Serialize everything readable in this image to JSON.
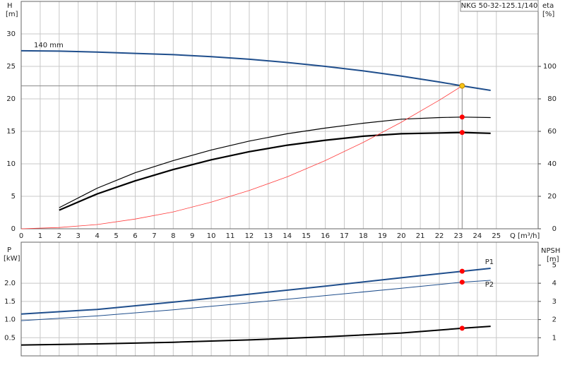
{
  "chart_data": [
    {
      "type": "line",
      "title": "NKG 50-32-125.1/140",
      "y_label": "H",
      "y_unit": "[m]",
      "y2_label": "eta",
      "y2_unit": "[%]",
      "x_label": "Q [m³/h]",
      "xlim": [
        0,
        27.2
      ],
      "xticks": [
        0,
        1,
        2,
        3,
        4,
        5,
        6,
        7,
        8,
        9,
        10,
        11,
        12,
        13,
        14,
        15,
        16,
        17,
        18,
        19,
        20,
        21,
        22,
        23,
        24,
        25
      ],
      "ylim": [
        0,
        35
      ],
      "yticks": [
        0,
        5,
        10,
        15,
        20,
        25,
        30
      ],
      "y2lim": [
        0,
        140
      ],
      "y2ticks": [
        0,
        20,
        40,
        60,
        80,
        100
      ],
      "grid": true,
      "series": [
        {
          "name": "140 mm",
          "color": "#1f4e8c",
          "width": 2,
          "x": [
            0,
            2,
            4,
            6,
            8,
            10,
            12,
            14,
            16,
            18,
            20,
            22,
            23.2,
            24.7
          ],
          "values": [
            27.4,
            27.35,
            27.2,
            27.0,
            26.8,
            26.5,
            26.1,
            25.6,
            25.0,
            24.3,
            23.5,
            22.6,
            22.0,
            21.3
          ]
        },
        {
          "color": "#000000",
          "width": 1.2,
          "axis": "y2",
          "x": [
            2,
            4,
            6,
            8,
            10,
            12,
            14,
            16,
            18,
            20,
            22,
            23.2,
            24.7
          ],
          "values": [
            13,
            25,
            34.5,
            42,
            48.5,
            54,
            58.5,
            62,
            65,
            67.5,
            68.5,
            68.8,
            68.5
          ]
        },
        {
          "color": "#000000",
          "width": 2.2,
          "axis": "y2",
          "x": [
            2,
            4,
            6,
            8,
            10,
            12,
            14,
            16,
            18,
            20,
            22,
            23.2,
            24.7
          ],
          "values": [
            11.5,
            21.5,
            29.5,
            36.5,
            42.5,
            47.5,
            51.5,
            54.5,
            57,
            58.5,
            59,
            59.3,
            58.8
          ]
        },
        {
          "color": "#ff3b3b",
          "width": 0.8,
          "x": [
            0,
            2,
            4,
            6,
            8,
            10,
            12,
            14,
            16,
            18,
            20,
            22,
            23.2
          ],
          "values": [
            0,
            0.2,
            0.65,
            1.5,
            2.6,
            4.1,
            5.9,
            8.0,
            10.5,
            13.3,
            16.4,
            19.8,
            22
          ]
        }
      ],
      "points": [
        {
          "x": 23.2,
          "y": 22,
          "color": "#f5c518",
          "guide": true
        },
        {
          "x": 23.2,
          "y": 68.8,
          "color": "#ff0000",
          "axis": "y2"
        },
        {
          "x": 23.2,
          "y": 59.3,
          "color": "#ff0000",
          "axis": "y2"
        }
      ]
    },
    {
      "type": "line",
      "y_label": "P",
      "y_unit": "[kW]",
      "y2_label": "NPSH",
      "y2_unit": "[m]",
      "xlim": [
        0,
        27.2
      ],
      "xticks": [
        0,
        1,
        2,
        3,
        4,
        5,
        6,
        7,
        8,
        9,
        10,
        11,
        12,
        13,
        14,
        15,
        16,
        17,
        18,
        19,
        20,
        21,
        22,
        23,
        24,
        25
      ],
      "ylim": [
        0,
        3.13
      ],
      "yticks": [
        0.5,
        {
          "value": 1,
          "label": "1.0"
        },
        1.5,
        {
          "value": 2,
          "label": "2.0"
        }
      ],
      "y2lim": [
        0,
        6.26
      ],
      "y2ticks": [
        1,
        2,
        3,
        4,
        5
      ],
      "grid": true,
      "series": [
        {
          "name": "P1",
          "color": "#1f4e8c",
          "width": 2,
          "x": [
            0,
            4,
            8,
            12,
            16,
            20,
            23.2,
            24.7
          ],
          "values": [
            1.15,
            1.28,
            1.48,
            1.7,
            1.92,
            2.15,
            2.33,
            2.41
          ]
        },
        {
          "name": "P2",
          "color": "#1f4e8c",
          "width": 1,
          "x": [
            0,
            4,
            8,
            12,
            16,
            20,
            23.2,
            24.7
          ],
          "values": [
            0.97,
            1.1,
            1.27,
            1.46,
            1.66,
            1.86,
            2.03,
            2.08
          ]
        },
        {
          "color": "#000000",
          "width": 2,
          "axis": "y2",
          "x": [
            0,
            4,
            8,
            12,
            16,
            20,
            23.2,
            24.7
          ],
          "values": [
            0.6,
            0.66,
            0.75,
            0.88,
            1.05,
            1.26,
            1.52,
            1.63
          ]
        }
      ],
      "points": [
        {
          "x": 23.2,
          "y": 2.33,
          "color": "#ff0000"
        },
        {
          "x": 23.2,
          "y": 2.03,
          "color": "#ff0000"
        },
        {
          "x": 23.2,
          "y": 1.52,
          "color": "#ff0000",
          "axis": "y2"
        }
      ]
    }
  ]
}
